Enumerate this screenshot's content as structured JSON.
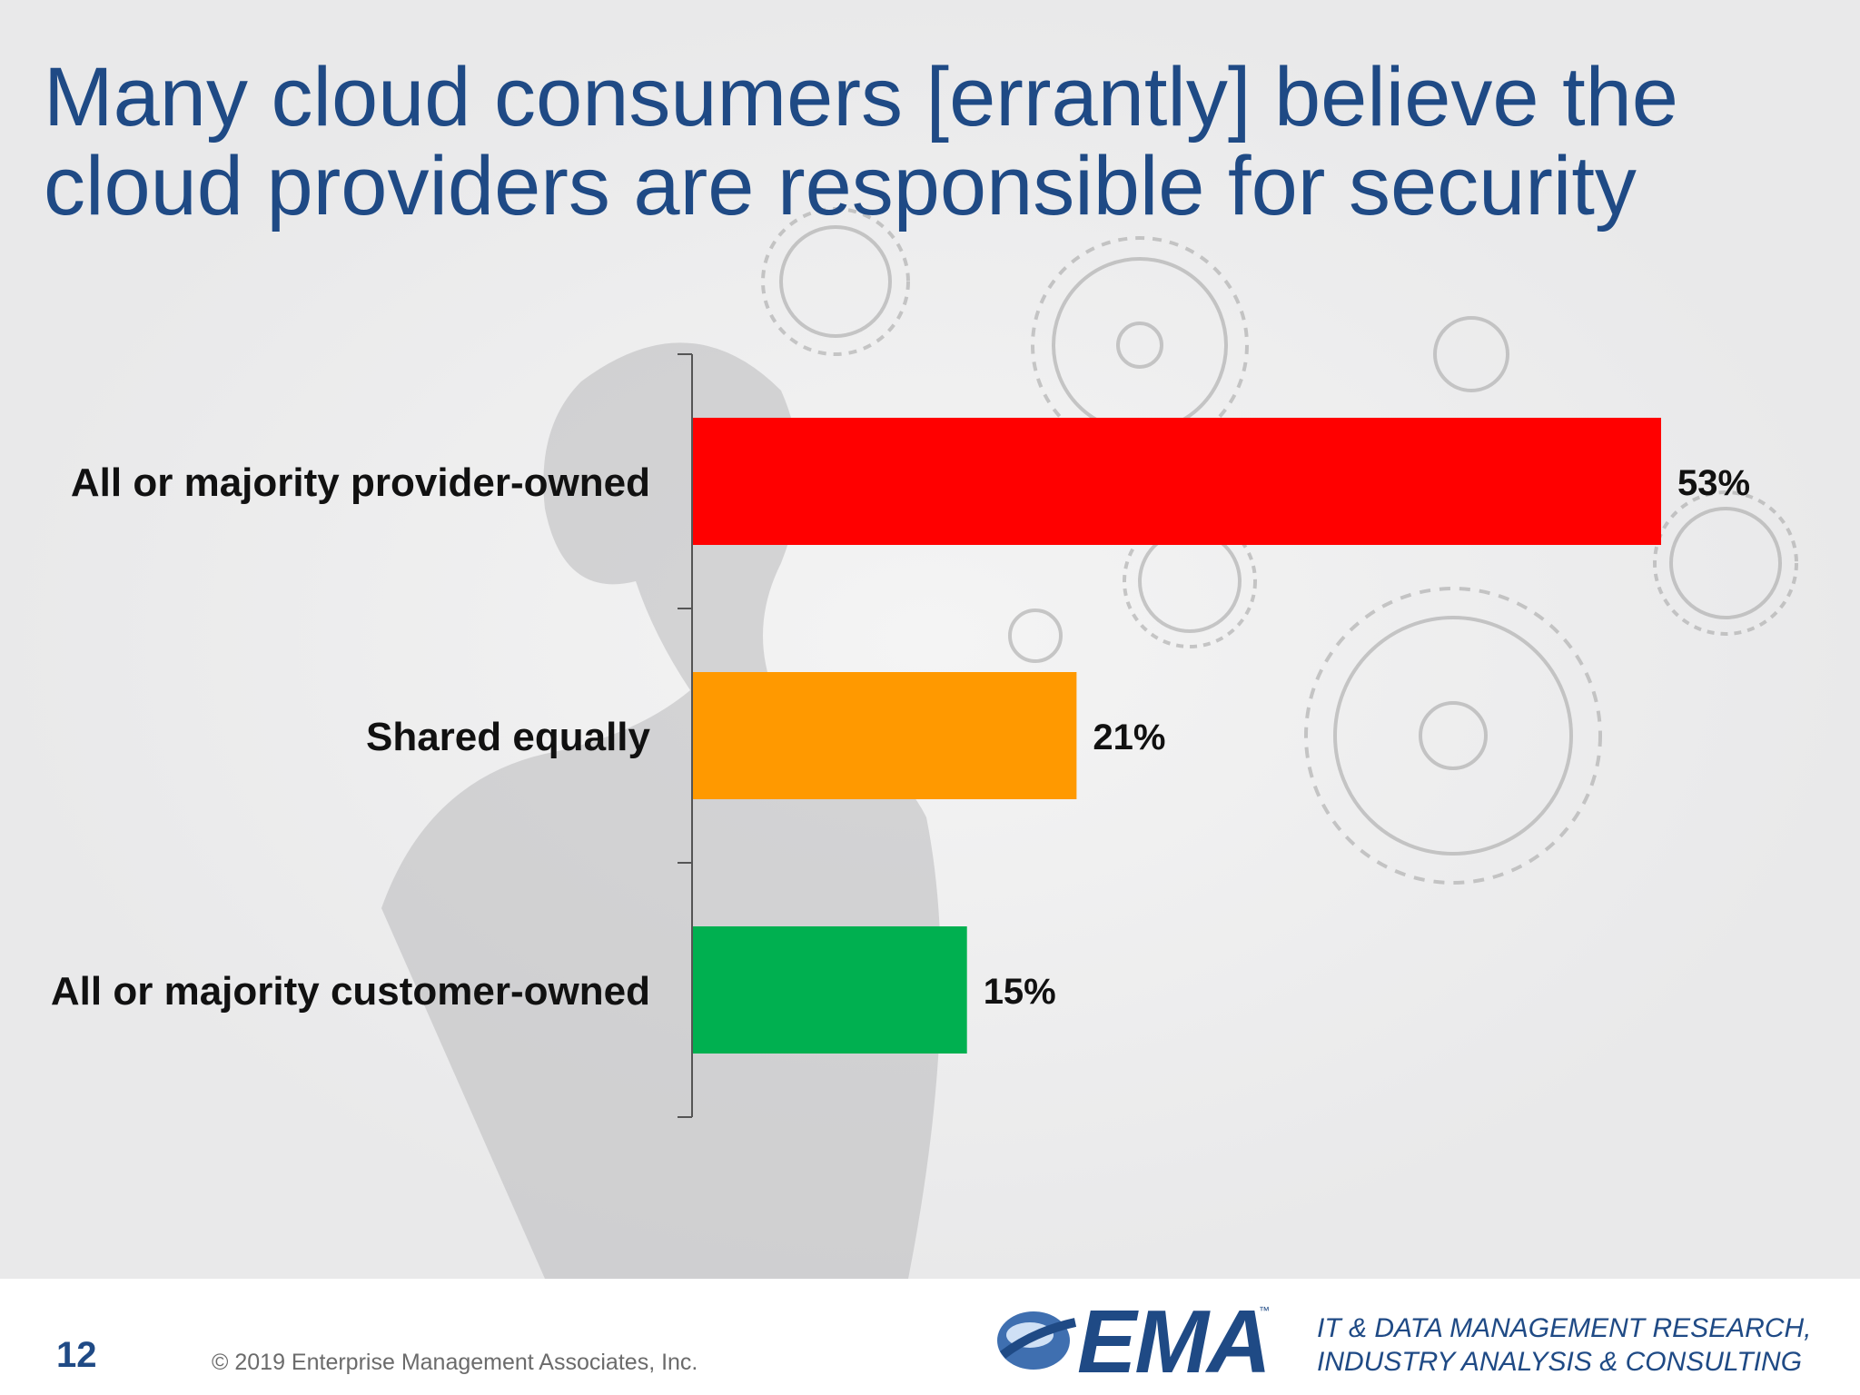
{
  "slide": {
    "title_lines": [
      "Many cloud consumers [errantly] believe the",
      "cloud providers are responsible for security"
    ],
    "page_number": "12",
    "copyright": "© 2019 Enterprise Management Associates, Inc.",
    "logo_text": "EMA",
    "logo_tm": "™",
    "tagline_lines": [
      "IT & DATA MANAGEMENT RESEARCH,",
      "INDUSTRY ANALYSIS & CONSULTING"
    ],
    "colors": {
      "title": "#1f4a85",
      "background": "#e9e9ea",
      "footer": "#ffffff"
    }
  },
  "chart_data": {
    "type": "bar",
    "orientation": "horizontal",
    "categories": [
      "All or majority provider-owned",
      "Shared equally",
      "All or majority customer-owned"
    ],
    "values": [
      53,
      21,
      15
    ],
    "value_labels": [
      "53%",
      "21%",
      "15%"
    ],
    "colors": [
      "#ff0000",
      "#ff9900",
      "#00b050"
    ],
    "xlim": [
      0,
      60
    ],
    "grid": false,
    "legend": "none"
  }
}
